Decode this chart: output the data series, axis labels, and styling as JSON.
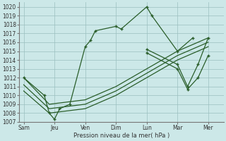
{
  "x_labels": [
    "Sam",
    "Jeu",
    "Ven",
    "Dim",
    "Lun",
    "Mar",
    "Mer"
  ],
  "x_tick_pos": [
    0,
    1,
    2,
    3,
    4,
    5,
    6
  ],
  "main_x": [
    0,
    0.67,
    0.83,
    1.0,
    1.17,
    1.5,
    2.0,
    2.17,
    2.33,
    3.0,
    3.17,
    4.0,
    4.17,
    5.0,
    5.5
  ],
  "main_y": [
    1012,
    1010,
    1008,
    1007.3,
    1008.5,
    1009,
    1015.5,
    1016.2,
    1017.3,
    1017.8,
    1017.5,
    1020,
    1019,
    1015,
    1016.5
  ],
  "band1_x": [
    0,
    0.83,
    2.0,
    3.0,
    4.0,
    5.0,
    6.0
  ],
  "band1_y": [
    1012,
    1009,
    1009.5,
    1011.0,
    1013.0,
    1015.0,
    1016.5
  ],
  "band2_x": [
    0,
    0.83,
    2.0,
    3.0,
    4.0,
    5.0,
    6.0
  ],
  "band2_y": [
    1011.2,
    1008.5,
    1009.0,
    1010.5,
    1012.5,
    1014.5,
    1016.0
  ],
  "band3_x": [
    0,
    0.83,
    2.0,
    3.0,
    4.0,
    5.0,
    6.0
  ],
  "band3_y": [
    1010.5,
    1008.0,
    1008.5,
    1010.0,
    1012.0,
    1014.0,
    1015.5
  ],
  "right_x": [
    4.0,
    5.0,
    5.33,
    5.67,
    6.0
  ],
  "right_y": [
    1015.2,
    1013.5,
    1011.0,
    1013.5,
    1016.5
  ],
  "right2_x": [
    4.0,
    5.0,
    5.33,
    5.67,
    6.0
  ],
  "right2_y": [
    1014.8,
    1013.0,
    1010.7,
    1012.0,
    1014.5
  ],
  "ylim": [
    1007,
    1020.5
  ],
  "yticks": [
    1007,
    1008,
    1009,
    1010,
    1011,
    1012,
    1013,
    1014,
    1015,
    1016,
    1017,
    1018,
    1019,
    1020
  ],
  "xlabel": "Pression niveau de la mer( hPa )",
  "line_color": "#2a5e2a",
  "bg_color": "#cce8e8",
  "grid_color": "#9bbfbf",
  "xlim": [
    -0.15,
    6.5
  ]
}
